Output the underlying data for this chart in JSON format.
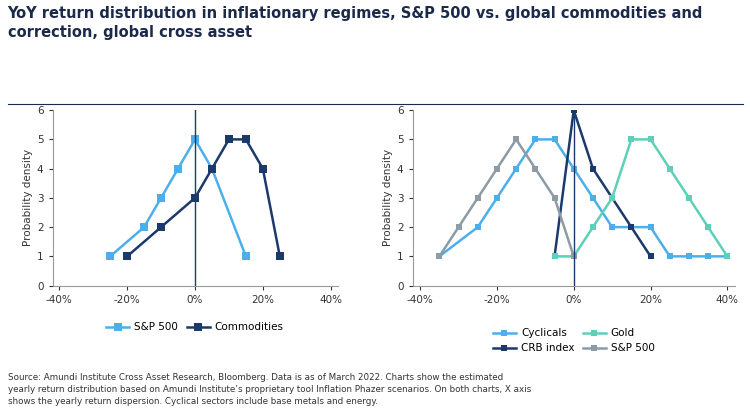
{
  "title": "YoY return distribution in inflationary regimes, S&P 500 vs. global commodities and\ncorrection, global cross asset",
  "title_fontsize": 10.5,
  "footnote": "Source: Amundi Institute Cross Asset Research, Bloomberg. Data is as of March 2022. Charts show the estimated\nyearly return distribution based on Amundi Institute’s proprietary tool Inflation Phazer scenarios. On both charts, X axis\nshows the yearly return dispersion. Cyclical sectors include base metals and energy.",
  "ylabel": "Probability density",
  "ylim": [
    0,
    6
  ],
  "yticks": [
    0,
    1,
    2,
    3,
    4,
    5,
    6
  ],
  "xlim": [
    -0.42,
    0.42
  ],
  "xticks": [
    -0.4,
    -0.2,
    0.0,
    0.2,
    0.4
  ],
  "chart1_sp500_x": [
    -0.25,
    -0.15,
    -0.1,
    -0.05,
    0.0,
    0.05,
    0.15
  ],
  "chart1_sp500_y": [
    1,
    2,
    3,
    4,
    5,
    4,
    1
  ],
  "chart1_sp500_color": "#4DAFEA",
  "chart1_sp500_label": "S&P 500",
  "chart1_comm_x": [
    -0.2,
    -0.1,
    0.0,
    0.05,
    0.1,
    0.15,
    0.2,
    0.25
  ],
  "chart1_comm_y": [
    1,
    2,
    3,
    4,
    5,
    5,
    4,
    1
  ],
  "chart1_comm_color": "#1B3A6B",
  "chart1_comm_label": "Commodities",
  "chart2_cyclicals_x": [
    -0.35,
    -0.25,
    -0.2,
    -0.15,
    -0.1,
    -0.05,
    0.0,
    0.05,
    0.1,
    0.15,
    0.2,
    0.25,
    0.3,
    0.35,
    0.4
  ],
  "chart2_cyclicals_y": [
    1,
    2,
    3,
    4,
    5,
    5,
    4,
    3,
    2,
    2,
    2,
    1,
    1,
    1,
    1
  ],
  "chart2_cyclicals_color": "#4DAFEA",
  "chart2_cyclicals_label": "Cyclicals",
  "chart2_crb_x": [
    -0.05,
    0.0,
    0.05,
    0.1,
    0.15,
    0.2
  ],
  "chart2_crb_y": [
    1,
    6,
    4,
    3,
    2,
    1
  ],
  "chart2_crb_color": "#1B3A6B",
  "chart2_crb_label": "CRB index",
  "chart2_gold_x": [
    -0.05,
    0.0,
    0.05,
    0.1,
    0.15,
    0.2,
    0.25,
    0.3,
    0.35,
    0.4
  ],
  "chart2_gold_y": [
    1,
    1,
    2,
    3,
    5,
    5,
    4,
    3,
    2,
    1
  ],
  "chart2_gold_color": "#5ECFB8",
  "chart2_gold_label": "Gold",
  "chart2_sp500_x": [
    -0.35,
    -0.3,
    -0.25,
    -0.2,
    -0.15,
    -0.1,
    -0.05,
    0.0
  ],
  "chart2_sp500_y": [
    1,
    2,
    3,
    4,
    5,
    4,
    3,
    1
  ],
  "chart2_sp500_color": "#8C9BA5",
  "chart2_sp500_label": "S&P 500"
}
